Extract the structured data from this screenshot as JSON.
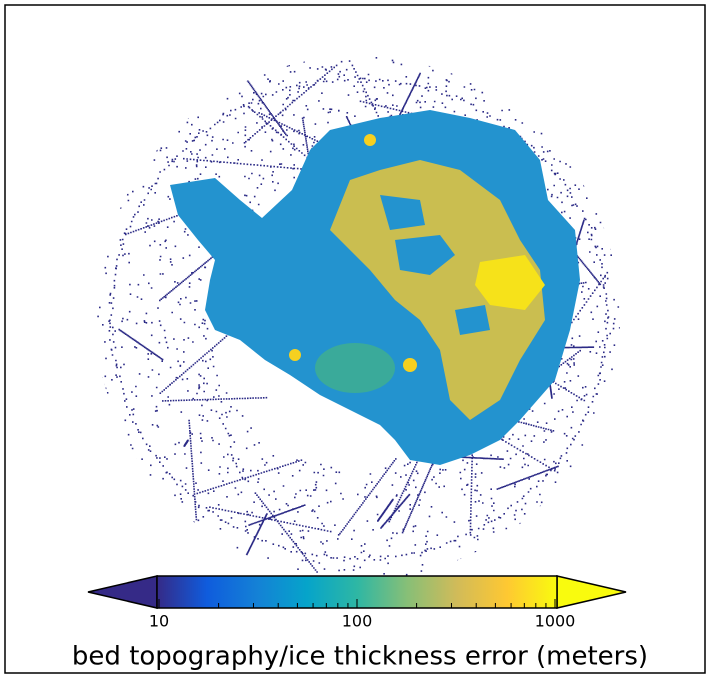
{
  "colorbar": {
    "label": "bed topography/ice thickness error (meters)",
    "scale": "log",
    "lim": [
      10,
      1000
    ],
    "ticks": [
      10,
      100,
      1000
    ],
    "minor_ticks": [
      20,
      30,
      40,
      50,
      60,
      70,
      80,
      90,
      200,
      300,
      400,
      500,
      600,
      700,
      800,
      900
    ],
    "colors": [
      "#352a87",
      "#0f5cdd",
      "#1481d6",
      "#06a4ca",
      "#2eb7a4",
      "#87bf77",
      "#d1bb59",
      "#fec832",
      "#f9fb0e"
    ]
  }
}
